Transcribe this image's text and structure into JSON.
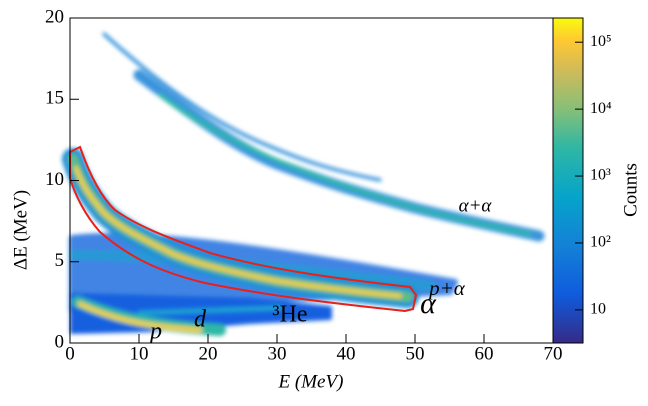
{
  "chart_data": {
    "type": "heatmap",
    "xlabel": "E (MeV)",
    "ylabel": "ΔE (MeV)",
    "xlim": [
      0,
      70
    ],
    "xticks": [
      0,
      10,
      20,
      30,
      40,
      50,
      60,
      70
    ],
    "ylim": [
      0,
      20
    ],
    "yticks": [
      0,
      5,
      10,
      15,
      20
    ],
    "colorbar": {
      "label": "Counts",
      "log": true,
      "lim": [
        3.2,
        230000
      ],
      "ticks": [
        10,
        {
          "value": 100,
          "label": "10²"
        },
        {
          "value": 1000,
          "label": "10³"
        },
        {
          "value": 10000,
          "label": "10⁴"
        },
        {
          "value": 100000,
          "label": "10⁵"
        }
      ]
    },
    "annotations": [
      "α+α",
      "p+α",
      "α",
      "³He",
      "d",
      "p"
    ]
  }
}
